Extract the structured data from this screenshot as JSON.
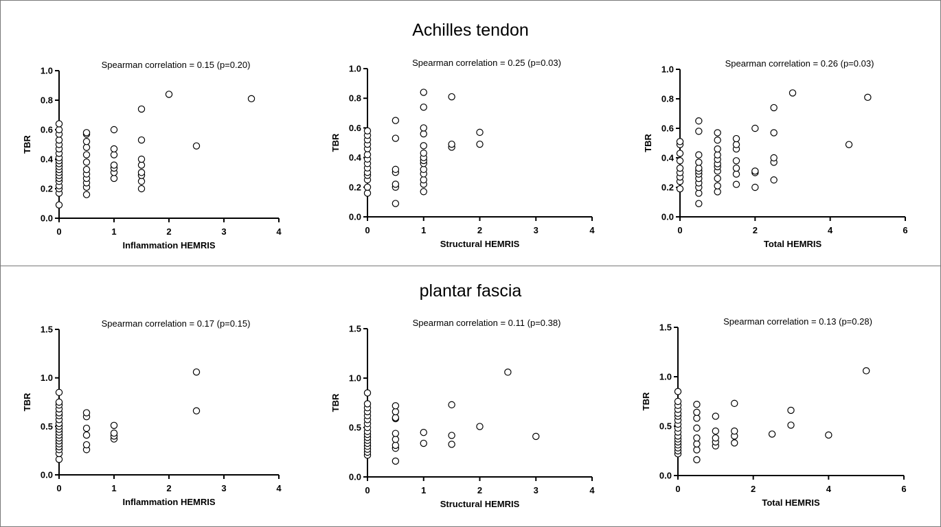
{
  "sections": [
    {
      "title": "Achilles tendon"
    },
    {
      "title": "plantar fascia"
    }
  ],
  "chart_data": [
    {
      "type": "scatter",
      "section": "Achilles tendon",
      "annotation": "Spearman correlation = 0.15 (p=0.20)",
      "xlabel": "Inflammation HEMRIS",
      "ylabel": "TBR",
      "xlim": [
        0,
        4
      ],
      "ylim": [
        0,
        1.0
      ],
      "xticks": [
        "0",
        "1",
        "2",
        "3",
        "4"
      ],
      "yticks": [
        "0.0",
        "0.2",
        "0.4",
        "0.6",
        "0.8",
        "1.0"
      ],
      "grid": false,
      "points": [
        [
          0,
          0.09
        ],
        [
          0,
          0.17
        ],
        [
          0,
          0.2
        ],
        [
          0,
          0.22
        ],
        [
          0,
          0.25
        ],
        [
          0,
          0.27
        ],
        [
          0,
          0.29
        ],
        [
          0,
          0.31
        ],
        [
          0,
          0.33
        ],
        [
          0,
          0.35
        ],
        [
          0,
          0.37
        ],
        [
          0,
          0.39
        ],
        [
          0,
          0.41
        ],
        [
          0,
          0.44
        ],
        [
          0,
          0.47
        ],
        [
          0,
          0.5
        ],
        [
          0,
          0.53
        ],
        [
          0,
          0.57
        ],
        [
          0,
          0.6
        ],
        [
          0,
          0.64
        ],
        [
          0.5,
          0.16
        ],
        [
          0.5,
          0.21
        ],
        [
          0.5,
          0.24
        ],
        [
          0.5,
          0.27
        ],
        [
          0.5,
          0.3
        ],
        [
          0.5,
          0.33
        ],
        [
          0.5,
          0.38
        ],
        [
          0.5,
          0.43
        ],
        [
          0.5,
          0.48
        ],
        [
          0.5,
          0.52
        ],
        [
          0.5,
          0.57
        ],
        [
          0.5,
          0.58
        ],
        [
          1,
          0.27
        ],
        [
          1,
          0.31
        ],
        [
          1,
          0.34
        ],
        [
          1,
          0.36
        ],
        [
          1,
          0.43
        ],
        [
          1,
          0.47
        ],
        [
          1,
          0.6
        ],
        [
          1.5,
          0.2
        ],
        [
          1.5,
          0.25
        ],
        [
          1.5,
          0.29
        ],
        [
          1.5,
          0.31
        ],
        [
          1.5,
          0.36
        ],
        [
          1.5,
          0.4
        ],
        [
          1.5,
          0.53
        ],
        [
          1.5,
          0.74
        ],
        [
          2,
          0.84
        ],
        [
          2.5,
          0.49
        ],
        [
          3.5,
          0.81
        ]
      ]
    },
    {
      "type": "scatter",
      "section": "Achilles tendon",
      "annotation": "Spearman correlation = 0.25 (p=0.03)",
      "xlabel": "Structural HEMRIS",
      "ylabel": "TBR",
      "xlim": [
        0,
        4
      ],
      "ylim": [
        0,
        1.0
      ],
      "xticks": [
        "0",
        "1",
        "2",
        "3",
        "4"
      ],
      "yticks": [
        "0.0",
        "0.2",
        "0.4",
        "0.6",
        "0.8",
        "1.0"
      ],
      "grid": false,
      "points": [
        [
          0,
          0.16
        ],
        [
          0,
          0.2
        ],
        [
          0,
          0.25
        ],
        [
          0,
          0.28
        ],
        [
          0,
          0.3
        ],
        [
          0,
          0.33
        ],
        [
          0,
          0.36
        ],
        [
          0,
          0.39
        ],
        [
          0,
          0.42
        ],
        [
          0,
          0.46
        ],
        [
          0,
          0.49
        ],
        [
          0,
          0.52
        ],
        [
          0,
          0.55
        ],
        [
          0,
          0.58
        ],
        [
          0.5,
          0.09
        ],
        [
          0.5,
          0.2
        ],
        [
          0.5,
          0.22
        ],
        [
          0.5,
          0.3
        ],
        [
          0.5,
          0.32
        ],
        [
          0.5,
          0.53
        ],
        [
          0.5,
          0.65
        ],
        [
          1,
          0.17
        ],
        [
          1,
          0.22
        ],
        [
          1,
          0.25
        ],
        [
          1,
          0.29
        ],
        [
          1,
          0.32
        ],
        [
          1,
          0.36
        ],
        [
          1,
          0.38
        ],
        [
          1,
          0.4
        ],
        [
          1,
          0.43
        ],
        [
          1,
          0.48
        ],
        [
          1,
          0.56
        ],
        [
          1,
          0.6
        ],
        [
          1,
          0.74
        ],
        [
          1,
          0.84
        ],
        [
          1.5,
          0.47
        ],
        [
          1.5,
          0.49
        ],
        [
          1.5,
          0.81
        ],
        [
          2,
          0.49
        ],
        [
          2,
          0.57
        ]
      ]
    },
    {
      "type": "scatter",
      "section": "Achilles tendon",
      "annotation": "Spearman correlation = 0.26 (p=0.03)",
      "xlabel": "Total HEMRIS",
      "ylabel": "TBR",
      "xlim": [
        0,
        6
      ],
      "ylim": [
        0,
        1.0
      ],
      "xticks": [
        "0",
        "2",
        "4",
        "6"
      ],
      "yticks": [
        "0.0",
        "0.2",
        "0.4",
        "0.6",
        "0.8",
        "1.0"
      ],
      "grid": false,
      "points": [
        [
          0,
          0.19
        ],
        [
          0,
          0.24
        ],
        [
          0,
          0.27
        ],
        [
          0,
          0.3
        ],
        [
          0,
          0.33
        ],
        [
          0,
          0.38
        ],
        [
          0,
          0.43
        ],
        [
          0,
          0.49
        ],
        [
          0,
          0.51
        ],
        [
          0.5,
          0.09
        ],
        [
          0.5,
          0.16
        ],
        [
          0.5,
          0.2
        ],
        [
          0.5,
          0.23
        ],
        [
          0.5,
          0.26
        ],
        [
          0.5,
          0.29
        ],
        [
          0.5,
          0.31
        ],
        [
          0.5,
          0.33
        ],
        [
          0.5,
          0.37
        ],
        [
          0.5,
          0.42
        ],
        [
          0.5,
          0.58
        ],
        [
          0.5,
          0.65
        ],
        [
          1,
          0.17
        ],
        [
          1,
          0.21
        ],
        [
          1,
          0.26
        ],
        [
          1,
          0.31
        ],
        [
          1,
          0.34
        ],
        [
          1,
          0.36
        ],
        [
          1,
          0.39
        ],
        [
          1,
          0.42
        ],
        [
          1,
          0.46
        ],
        [
          1,
          0.52
        ],
        [
          1,
          0.57
        ],
        [
          1.5,
          0.22
        ],
        [
          1.5,
          0.29
        ],
        [
          1.5,
          0.33
        ],
        [
          1.5,
          0.38
        ],
        [
          1.5,
          0.46
        ],
        [
          1.5,
          0.49
        ],
        [
          1.5,
          0.53
        ],
        [
          2,
          0.2
        ],
        [
          2,
          0.3
        ],
        [
          2,
          0.31
        ],
        [
          2,
          0.6
        ],
        [
          2.5,
          0.25
        ],
        [
          2.5,
          0.37
        ],
        [
          2.5,
          0.4
        ],
        [
          2.5,
          0.57
        ],
        [
          2.5,
          0.74
        ],
        [
          3,
          0.84
        ],
        [
          4.5,
          0.49
        ],
        [
          5,
          0.81
        ]
      ]
    },
    {
      "type": "scatter",
      "section": "plantar fascia",
      "annotation": "Spearman correlation = 0.17 (p=0.15)",
      "xlabel": "Inflammation HEMRIS",
      "ylabel": "TBR",
      "xlim": [
        0,
        4
      ],
      "ylim": [
        0,
        1.5
      ],
      "xticks": [
        "0",
        "1",
        "2",
        "3",
        "4"
      ],
      "yticks": [
        "0.0",
        "0.5",
        "1.0",
        "1.5"
      ],
      "grid": false,
      "points": [
        [
          0,
          0.16
        ],
        [
          0,
          0.22
        ],
        [
          0,
          0.26
        ],
        [
          0,
          0.29
        ],
        [
          0,
          0.32
        ],
        [
          0,
          0.35
        ],
        [
          0,
          0.38
        ],
        [
          0,
          0.41
        ],
        [
          0,
          0.44
        ],
        [
          0,
          0.47
        ],
        [
          0,
          0.5
        ],
        [
          0,
          0.53
        ],
        [
          0,
          0.57
        ],
        [
          0,
          0.61
        ],
        [
          0,
          0.64
        ],
        [
          0,
          0.68
        ],
        [
          0,
          0.72
        ],
        [
          0,
          0.75
        ],
        [
          0,
          0.85
        ],
        [
          0.5,
          0.26
        ],
        [
          0.5,
          0.31
        ],
        [
          0.5,
          0.41
        ],
        [
          0.5,
          0.48
        ],
        [
          0.5,
          0.6
        ],
        [
          0.5,
          0.64
        ],
        [
          1,
          0.37
        ],
        [
          1,
          0.4
        ],
        [
          1,
          0.43
        ],
        [
          1,
          0.51
        ],
        [
          2.5,
          0.66
        ],
        [
          2.5,
          1.06
        ]
      ]
    },
    {
      "type": "scatter",
      "section": "plantar fascia",
      "annotation": "Spearman correlation = 0.11 (p=0.38)",
      "xlabel": "Structural HEMRIS",
      "ylabel": "TBR",
      "xlim": [
        0,
        4
      ],
      "ylim": [
        0,
        1.5
      ],
      "xticks": [
        "0",
        "1",
        "2",
        "3",
        "4"
      ],
      "yticks": [
        "0.0",
        "0.5",
        "1.0",
        "1.5"
      ],
      "grid": false,
      "points": [
        [
          0,
          0.22
        ],
        [
          0,
          0.25
        ],
        [
          0,
          0.28
        ],
        [
          0,
          0.31
        ],
        [
          0,
          0.34
        ],
        [
          0,
          0.37
        ],
        [
          0,
          0.4
        ],
        [
          0,
          0.43
        ],
        [
          0,
          0.46
        ],
        [
          0,
          0.5
        ],
        [
          0,
          0.54
        ],
        [
          0,
          0.58
        ],
        [
          0,
          0.62
        ],
        [
          0,
          0.66
        ],
        [
          0,
          0.7
        ],
        [
          0,
          0.74
        ],
        [
          0,
          0.85
        ],
        [
          0.5,
          0.16
        ],
        [
          0.5,
          0.29
        ],
        [
          0.5,
          0.32
        ],
        [
          0.5,
          0.38
        ],
        [
          0.5,
          0.44
        ],
        [
          0.5,
          0.59
        ],
        [
          0.5,
          0.6
        ],
        [
          0.5,
          0.66
        ],
        [
          0.5,
          0.72
        ],
        [
          1,
          0.34
        ],
        [
          1,
          0.45
        ],
        [
          1.5,
          0.33
        ],
        [
          1.5,
          0.42
        ],
        [
          1.5,
          0.73
        ],
        [
          2,
          0.51
        ],
        [
          2.5,
          1.06
        ],
        [
          3,
          0.41
        ]
      ]
    },
    {
      "type": "scatter",
      "section": "plantar fascia",
      "annotation": "Spearman correlation = 0.13 (p=0.28)",
      "xlabel": "Total HEMRIS",
      "ylabel": "TBR",
      "xlim": [
        0,
        6
      ],
      "ylim": [
        0,
        1.5
      ],
      "xticks": [
        "0",
        "2",
        "4",
        "6"
      ],
      "yticks": [
        "0.0",
        "0.5",
        "1.0",
        "1.5"
      ],
      "grid": false,
      "points": [
        [
          0,
          0.22
        ],
        [
          0,
          0.25
        ],
        [
          0,
          0.28
        ],
        [
          0,
          0.31
        ],
        [
          0,
          0.34
        ],
        [
          0,
          0.37
        ],
        [
          0,
          0.4
        ],
        [
          0,
          0.44
        ],
        [
          0,
          0.48
        ],
        [
          0,
          0.52
        ],
        [
          0,
          0.56
        ],
        [
          0,
          0.6
        ],
        [
          0,
          0.63
        ],
        [
          0,
          0.67
        ],
        [
          0,
          0.71
        ],
        [
          0,
          0.75
        ],
        [
          0,
          0.85
        ],
        [
          0.5,
          0.16
        ],
        [
          0.5,
          0.26
        ],
        [
          0.5,
          0.32
        ],
        [
          0.5,
          0.38
        ],
        [
          0.5,
          0.48
        ],
        [
          0.5,
          0.58
        ],
        [
          0.5,
          0.64
        ],
        [
          0.5,
          0.72
        ],
        [
          1,
          0.3
        ],
        [
          1,
          0.34
        ],
        [
          1,
          0.38
        ],
        [
          1,
          0.45
        ],
        [
          1,
          0.6
        ],
        [
          1.5,
          0.33
        ],
        [
          1.5,
          0.4
        ],
        [
          1.5,
          0.45
        ],
        [
          1.5,
          0.73
        ],
        [
          2.5,
          0.42
        ],
        [
          3,
          0.51
        ],
        [
          3,
          0.66
        ],
        [
          4,
          0.41
        ],
        [
          5,
          1.06
        ]
      ]
    }
  ]
}
